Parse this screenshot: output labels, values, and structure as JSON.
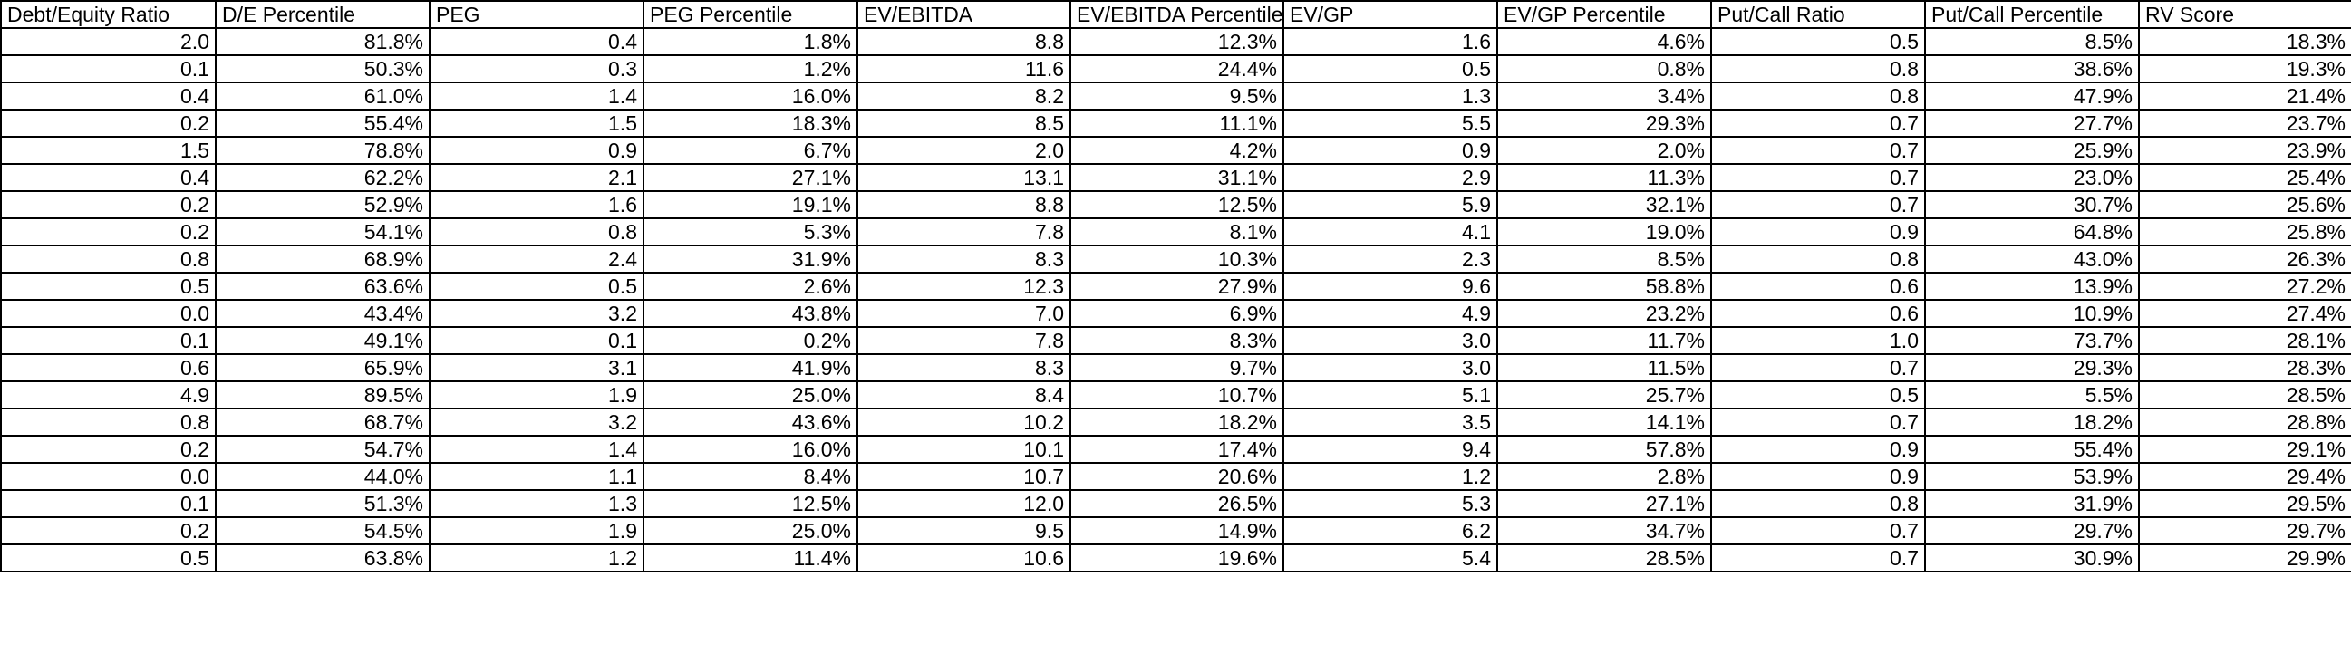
{
  "sheet": {
    "headers": [
      "Debt/Equity Ratio",
      "D/E Percentile",
      "PEG",
      "PEG Percentile",
      "EV/EBITDA",
      "EV/EBITDA Percentile",
      "EV/GP",
      "EV/GP Percentile",
      "Put/Call Ratio",
      "Put/Call Percentile",
      "RV Score"
    ],
    "rows": [
      [
        "2.0",
        "81.8%",
        "0.4",
        "1.8%",
        "8.8",
        "12.3%",
        "1.6",
        "4.6%",
        "0.5",
        "8.5%",
        "18.3%"
      ],
      [
        "0.1",
        "50.3%",
        "0.3",
        "1.2%",
        "11.6",
        "24.4%",
        "0.5",
        "0.8%",
        "0.8",
        "38.6%",
        "19.3%"
      ],
      [
        "0.4",
        "61.0%",
        "1.4",
        "16.0%",
        "8.2",
        "9.5%",
        "1.3",
        "3.4%",
        "0.8",
        "47.9%",
        "21.4%"
      ],
      [
        "0.2",
        "55.4%",
        "1.5",
        "18.3%",
        "8.5",
        "11.1%",
        "5.5",
        "29.3%",
        "0.7",
        "27.7%",
        "23.7%"
      ],
      [
        "1.5",
        "78.8%",
        "0.9",
        "6.7%",
        "2.0",
        "4.2%",
        "0.9",
        "2.0%",
        "0.7",
        "25.9%",
        "23.9%"
      ],
      [
        "0.4",
        "62.2%",
        "2.1",
        "27.1%",
        "13.1",
        "31.1%",
        "2.9",
        "11.3%",
        "0.7",
        "23.0%",
        "25.4%"
      ],
      [
        "0.2",
        "52.9%",
        "1.6",
        "19.1%",
        "8.8",
        "12.5%",
        "5.9",
        "32.1%",
        "0.7",
        "30.7%",
        "25.6%"
      ],
      [
        "0.2",
        "54.1%",
        "0.8",
        "5.3%",
        "7.8",
        "8.1%",
        "4.1",
        "19.0%",
        "0.9",
        "64.8%",
        "25.8%"
      ],
      [
        "0.8",
        "68.9%",
        "2.4",
        "31.9%",
        "8.3",
        "10.3%",
        "2.3",
        "8.5%",
        "0.8",
        "43.0%",
        "26.3%"
      ],
      [
        "0.5",
        "63.6%",
        "0.5",
        "2.6%",
        "12.3",
        "27.9%",
        "9.6",
        "58.8%",
        "0.6",
        "13.9%",
        "27.2%"
      ],
      [
        "0.0",
        "43.4%",
        "3.2",
        "43.8%",
        "7.0",
        "6.9%",
        "4.9",
        "23.2%",
        "0.6",
        "10.9%",
        "27.4%"
      ],
      [
        "0.1",
        "49.1%",
        "0.1",
        "0.2%",
        "7.8",
        "8.3%",
        "3.0",
        "11.7%",
        "1.0",
        "73.7%",
        "28.1%"
      ],
      [
        "0.6",
        "65.9%",
        "3.1",
        "41.9%",
        "8.3",
        "9.7%",
        "3.0",
        "11.5%",
        "0.7",
        "29.3%",
        "28.3%"
      ],
      [
        "4.9",
        "89.5%",
        "1.9",
        "25.0%",
        "8.4",
        "10.7%",
        "5.1",
        "25.7%",
        "0.5",
        "5.5%",
        "28.5%"
      ],
      [
        "0.8",
        "68.7%",
        "3.2",
        "43.6%",
        "10.2",
        "18.2%",
        "3.5",
        "14.1%",
        "0.7",
        "18.2%",
        "28.8%"
      ],
      [
        "0.2",
        "54.7%",
        "1.4",
        "16.0%",
        "10.1",
        "17.4%",
        "9.4",
        "57.8%",
        "0.9",
        "55.4%",
        "29.1%"
      ],
      [
        "0.0",
        "44.0%",
        "1.1",
        "8.4%",
        "10.7",
        "20.6%",
        "1.2",
        "2.8%",
        "0.9",
        "53.9%",
        "29.4%"
      ],
      [
        "0.1",
        "51.3%",
        "1.3",
        "12.5%",
        "12.0",
        "26.5%",
        "5.3",
        "27.1%",
        "0.8",
        "31.9%",
        "29.5%"
      ],
      [
        "0.2",
        "54.5%",
        "1.9",
        "25.0%",
        "9.5",
        "14.9%",
        "6.2",
        "34.7%",
        "0.7",
        "29.7%",
        "29.7%"
      ],
      [
        "0.5",
        "63.8%",
        "1.2",
        "11.4%",
        "10.6",
        "19.6%",
        "5.4",
        "28.5%",
        "0.7",
        "30.9%",
        "29.9%"
      ]
    ]
  }
}
